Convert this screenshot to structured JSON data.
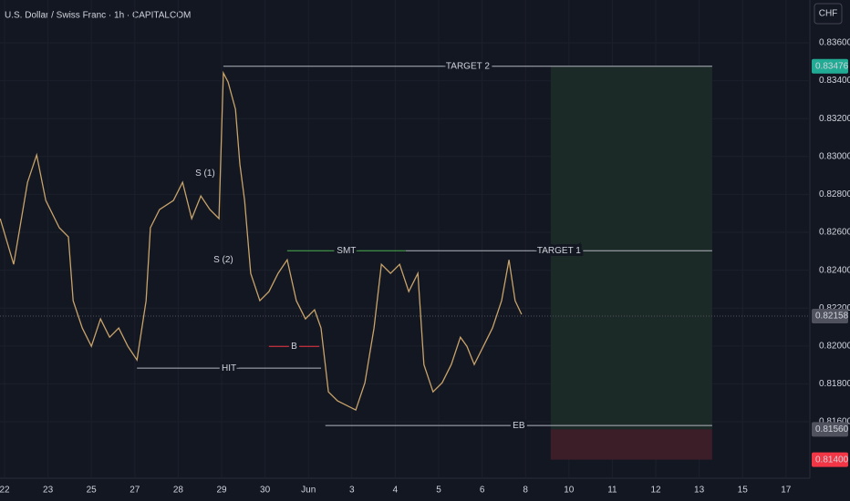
{
  "chart_data": {
    "type": "line",
    "title": "U.S. Dollar / Swiss Franc · 1h · CAPITALCOM",
    "currency": "CHF",
    "xlim": [
      -0.105,
      18.55
    ],
    "ylim": [
      0.81302,
      0.83826
    ],
    "grid": true,
    "xticks": [
      {
        "value": 0,
        "label": "22"
      },
      {
        "value": 1,
        "label": "23"
      },
      {
        "value": 2,
        "label": "25"
      },
      {
        "value": 3,
        "label": "27"
      },
      {
        "value": 4,
        "label": "28"
      },
      {
        "value": 5,
        "label": "29"
      },
      {
        "value": 6,
        "label": "30"
      },
      {
        "value": 7,
        "label": "Jun"
      },
      {
        "value": 8,
        "label": "3"
      },
      {
        "value": 9,
        "label": "4"
      },
      {
        "value": 10,
        "label": "5"
      },
      {
        "value": 11,
        "label": "6"
      },
      {
        "value": 12,
        "label": "8"
      },
      {
        "value": 13,
        "label": "10"
      },
      {
        "value": 14,
        "label": "11"
      },
      {
        "value": 15,
        "label": "12"
      },
      {
        "value": 16,
        "label": "13"
      },
      {
        "value": 17,
        "label": "15"
      },
      {
        "value": 18,
        "label": "17"
      }
    ],
    "yticks": [
      {
        "value": 0.836,
        "label": "0.83600"
      },
      {
        "value": 0.834,
        "label": "0.83400"
      },
      {
        "value": 0.832,
        "label": "0.83200"
      },
      {
        "value": 0.83,
        "label": "0.83000"
      },
      {
        "value": 0.828,
        "label": "0.82800"
      },
      {
        "value": 0.826,
        "label": "0.82600"
      },
      {
        "value": 0.824,
        "label": "0.82400"
      },
      {
        "value": 0.822,
        "label": "0.82200"
      },
      {
        "value": 0.82,
        "label": "0.82000"
      },
      {
        "value": 0.818,
        "label": "0.81800"
      },
      {
        "value": 0.816,
        "label": "0.81600"
      }
    ],
    "series": [
      {
        "color": "#c8a36a",
        "x": [
          -0.1,
          0.21,
          0.53,
          0.74,
          0.95,
          1.26,
          1.47,
          1.58,
          1.79,
          2.0,
          2.21,
          2.42,
          2.63,
          2.84,
          3.05,
          3.26,
          3.36,
          3.57,
          3.89,
          4.1,
          4.31,
          4.52,
          4.73,
          4.94,
          5.04,
          5.15,
          5.32,
          5.42,
          5.53,
          5.67,
          5.88,
          6.09,
          6.3,
          6.51,
          6.72,
          6.93,
          7.14,
          7.29,
          7.46,
          7.67,
          7.88,
          8.09,
          8.3,
          8.51,
          8.68,
          8.89,
          9.1,
          9.31,
          9.52,
          9.66,
          9.87,
          10.08,
          10.29,
          10.5,
          10.65,
          10.82,
          11.03,
          11.24,
          11.45,
          11.62,
          11.76,
          11.91
        ],
        "values": [
          0.82672,
          0.82431,
          0.82864,
          0.83008,
          0.82768,
          0.82624,
          0.82576,
          0.82239,
          0.82095,
          0.81998,
          0.82143,
          0.82046,
          0.82095,
          0.81998,
          0.81926,
          0.82239,
          0.82624,
          0.8272,
          0.82768,
          0.82864,
          0.82672,
          0.82792,
          0.8272,
          0.82672,
          0.83441,
          0.83393,
          0.83249,
          0.8296,
          0.82768,
          0.82383,
          0.82239,
          0.82287,
          0.82383,
          0.82455,
          0.82239,
          0.82143,
          0.82191,
          0.82095,
          0.81758,
          0.8171,
          0.81686,
          0.81662,
          0.81806,
          0.82095,
          0.82431,
          0.82383,
          0.82431,
          0.82287,
          0.82383,
          0.81902,
          0.81758,
          0.81806,
          0.81902,
          0.82046,
          0.81998,
          0.81902,
          0.81998,
          0.82095,
          0.82239,
          0.82455,
          0.82239,
          0.82167
        ]
      }
    ],
    "levels": [
      {
        "label": "TARGET 2",
        "value": 0.83476,
        "x": [
          5.04,
          16.3
        ],
        "color": "#b2b5be"
      },
      {
        "label": "TARGET 1",
        "value": 0.82503,
        "x": [
          9.24,
          16.3
        ],
        "color": "#b2b5be"
      },
      {
        "label": "SMT",
        "value": 0.82503,
        "x": [
          6.51,
          9.24
        ],
        "color": "#4caf50"
      },
      {
        "label": "B",
        "value": 0.81998,
        "x": [
          6.09,
          7.25
        ],
        "color": "#f23645"
      },
      {
        "label": "HIT",
        "value": 0.81883,
        "x": [
          3.05,
          7.29
        ],
        "color": "#b2b5be"
      },
      {
        "label": "EB",
        "value": 0.8158,
        "x": [
          7.39,
          16.3
        ],
        "color": "#b2b5be"
      }
    ],
    "labels": [
      {
        "text": "S (1)",
        "x": 4.62,
        "value": 0.82912
      },
      {
        "text": "S (2)",
        "x": 5.04,
        "value": 0.82455
      }
    ],
    "position": {
      "entry": 0.8156,
      "target": 0.83476,
      "stop": 0.814,
      "x": [
        12.58,
        16.3
      ]
    },
    "current_price": 0.82158,
    "price_labels": [
      {
        "value": 0.83476,
        "label": "0.83476",
        "color": "#22ab94"
      },
      {
        "value": 0.82158,
        "label": "0.82158",
        "color": "#50535e"
      },
      {
        "value": 0.8156,
        "label": "0.81560",
        "color": "#50535e"
      },
      {
        "value": 0.814,
        "label": "0.81400",
        "color": "#f23645"
      }
    ]
  }
}
